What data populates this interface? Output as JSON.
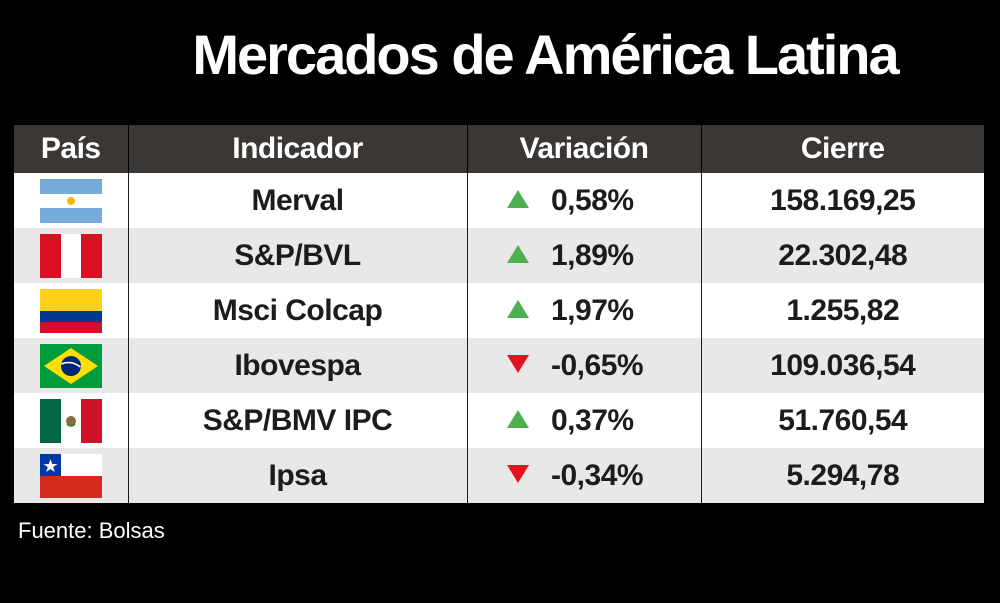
{
  "title": "Mercados de América Latina",
  "headers": {
    "country": "País",
    "indicator": "Indicador",
    "change": "Variación",
    "close": "Cierre"
  },
  "rows": [
    {
      "flag": "argentina-flag-icon",
      "indicator": "Merval",
      "direction": "up",
      "change": "0,58%",
      "close": "158.169,25"
    },
    {
      "flag": "peru-flag-icon",
      "indicator": "S&P/BVL",
      "direction": "up",
      "change": "1,89%",
      "close": "22.302,48"
    },
    {
      "flag": "colombia-flag-icon",
      "indicator": "Msci Colcap",
      "direction": "up",
      "change": "1,97%",
      "close": "1.255,82"
    },
    {
      "flag": "brazil-flag-icon",
      "indicator": "Ibovespa",
      "direction": "down",
      "change": "-0,65%",
      "close": "109.036,54"
    },
    {
      "flag": "mexico-flag-icon",
      "indicator": "S&P/BMV IPC",
      "direction": "up",
      "change": "0,37%",
      "close": "51.760,54"
    },
    {
      "flag": "chile-flag-icon",
      "indicator": "Ipsa",
      "direction": "down",
      "change": "-0,34%",
      "close": "5.294,78"
    }
  ],
  "colors": {
    "up": "#4caf50",
    "down": "#e0141e",
    "header_bg": "#3a3735"
  },
  "source": "Fuente: Bolsas"
}
